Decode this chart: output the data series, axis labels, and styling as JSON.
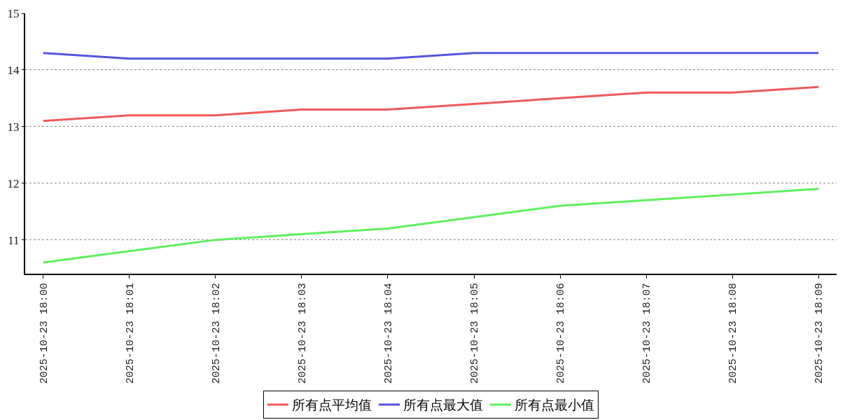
{
  "chart_data": {
    "type": "line",
    "categories": [
      "2025-10-23 18:00",
      "2025-10-23 18:01",
      "2025-10-23 18:02",
      "2025-10-23 18:03",
      "2025-10-23 18:04",
      "2025-10-23 18:05",
      "2025-10-23 18:06",
      "2025-10-23 18:07",
      "2025-10-23 18:08",
      "2025-10-23 18:09"
    ],
    "series": [
      {
        "name": "所有点平均值",
        "color": "#ee5a5a",
        "values": [
          13.1,
          13.2,
          13.2,
          13.3,
          13.3,
          13.4,
          13.5,
          13.6,
          13.6,
          13.7
        ]
      },
      {
        "name": "所有点最大值",
        "color": "#5555dd",
        "values": [
          14.3,
          14.2,
          14.2,
          14.2,
          14.2,
          14.3,
          14.3,
          14.3,
          14.3,
          14.3
        ]
      },
      {
        "name": "所有点最小值",
        "color": "#5ef05e",
        "values": [
          10.6,
          10.8,
          11.0,
          11.1,
          11.2,
          11.4,
          11.6,
          11.7,
          11.8,
          11.9
        ]
      }
    ],
    "ylim": [
      10.4,
      15
    ],
    "yticks": [
      11,
      12,
      13,
      14,
      15
    ],
    "grid": "y",
    "legend": "bottom",
    "marker": "none",
    "line_style": "solid"
  }
}
